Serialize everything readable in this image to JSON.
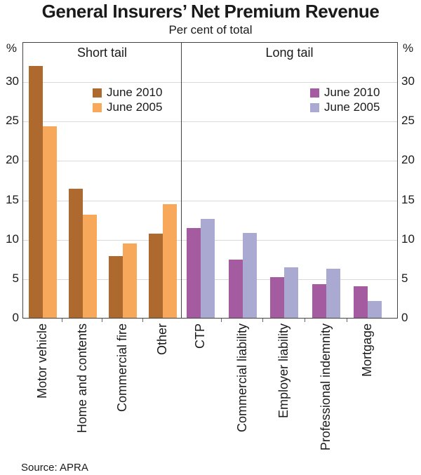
{
  "chart_data": {
    "type": "bar",
    "title": "General Insurers’ Net Premium Revenue",
    "subtitle": "Per cent of total",
    "ylabel": "%",
    "ylim": [
      0,
      35
    ],
    "yticks": [
      0,
      5,
      10,
      15,
      20,
      25,
      30
    ],
    "grid": "horizontal",
    "legend_position": "inside-top of each panel",
    "source": "Source: APRA",
    "panels": [
      {
        "label": "Short tail",
        "categories": [
          "Motor vehicle",
          "Home and contents",
          "Commercial fire",
          "Other"
        ],
        "series": [
          {
            "name": "June 2010",
            "color": "#ae6a2e",
            "values": [
              32.0,
              16.4,
              7.8,
              10.7
            ]
          },
          {
            "name": "June 2005",
            "color": "#f8a85a",
            "values": [
              24.3,
              13.1,
              9.4,
              14.4
            ]
          }
        ]
      },
      {
        "label": "Long tail",
        "categories": [
          "CTP",
          "Commercial liability",
          "Employer liability",
          "Professional indemnity",
          "Mortgage"
        ],
        "series": [
          {
            "name": "June 2010",
            "color": "#a55ba0",
            "values": [
              11.4,
              7.4,
              5.2,
              4.3,
              4.0
            ]
          },
          {
            "name": "June 2005",
            "color": "#a9a9d2",
            "values": [
              12.6,
              10.8,
              6.4,
              6.2,
              2.1
            ]
          }
        ]
      }
    ]
  }
}
